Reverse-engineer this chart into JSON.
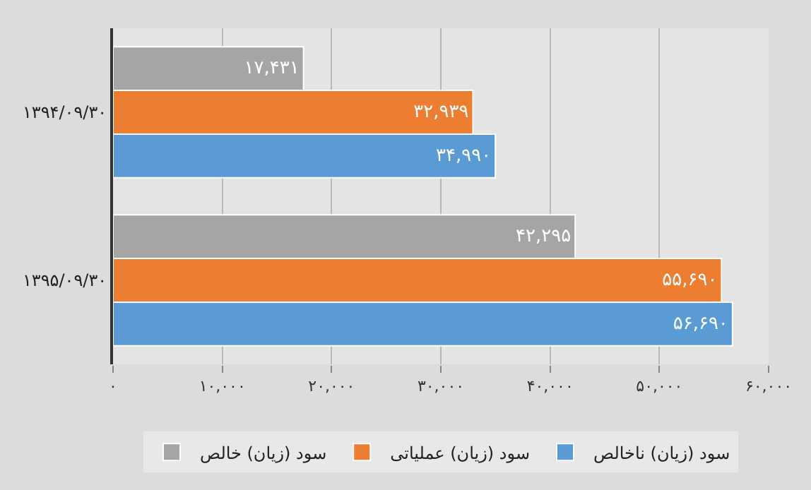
{
  "chart_data": {
    "type": "bar",
    "orientation": "horizontal",
    "categories": [
      "۱۳۹۴/۰۹/۳۰",
      "۱۳۹۵/۰۹/۳۰"
    ],
    "series": [
      {
        "name": "سود (زیان) خالص",
        "color": "#a5a5a5",
        "values": [
          17431,
          42295
        ],
        "value_labels": [
          "۱۷,۴۳۱",
          "۴۲,۲۹۵"
        ]
      },
      {
        "name": "سود (زیان) عملیاتی",
        "color": "#ed7d31",
        "values": [
          32939,
          55690
        ],
        "value_labels": [
          "۳۲,۹۳۹",
          "۵۵,۶۹۰"
        ]
      },
      {
        "name": "سود (زیان) ناخالص",
        "color": "#5b9bd5",
        "values": [
          34990,
          56690
        ],
        "value_labels": [
          "۳۴,۹۹۰",
          "۵۶,۶۹۰"
        ]
      }
    ],
    "xlim": [
      0,
      60000
    ],
    "xticks": [
      {
        "value": 0,
        "label": "۰"
      },
      {
        "value": 10000,
        "label": "۱۰,۰۰۰"
      },
      {
        "value": 20000,
        "label": "۲۰,۰۰۰"
      },
      {
        "value": 30000,
        "label": "۳۰,۰۰۰"
      },
      {
        "value": 40000,
        "label": "۴۰,۰۰۰"
      },
      {
        "value": 50000,
        "label": "۵۰,۰۰۰"
      },
      {
        "value": 60000,
        "label": "۶۰,۰۰۰"
      }
    ],
    "grid": "x",
    "legend": "bottom"
  }
}
